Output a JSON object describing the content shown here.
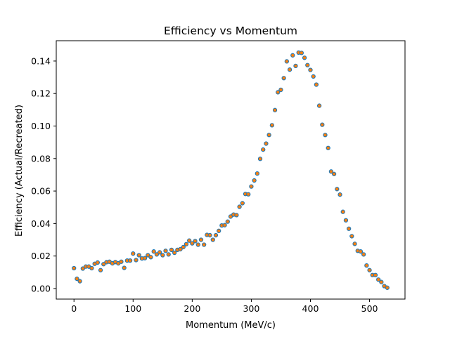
{
  "chart_data": {
    "type": "scatter",
    "title": "Efficiency vs Momentum",
    "xlabel": "Momentum (MeV/c)",
    "ylabel": "Efficiency (Actual/Recreated)",
    "xlim": [
      -30,
      560
    ],
    "ylim": [
      -0.0065,
      0.1525
    ],
    "xticks": [
      0,
      100,
      200,
      300,
      400,
      500
    ],
    "yticks": [
      0.0,
      0.02,
      0.04,
      0.06,
      0.08,
      0.1,
      0.12,
      0.14
    ],
    "ytick_labels": [
      "0.00",
      "0.02",
      "0.04",
      "0.06",
      "0.08",
      "0.10",
      "0.12",
      "0.14"
    ],
    "grid": false,
    "legend": "none",
    "marker_colors": {
      "face": "#ff7f0e",
      "edge": "#1f77b4"
    },
    "x": [
      0,
      5,
      10,
      15,
      20,
      25,
      30,
      35,
      40,
      45,
      50,
      55,
      60,
      65,
      70,
      75,
      80,
      85,
      90,
      95,
      100,
      105,
      110,
      115,
      120,
      125,
      130,
      135,
      140,
      145,
      150,
      155,
      160,
      165,
      170,
      175,
      180,
      185,
      190,
      195,
      200,
      205,
      210,
      215,
      220,
      225,
      230,
      235,
      240,
      245,
      250,
      255,
      260,
      265,
      270,
      275,
      280,
      285,
      290,
      295,
      300,
      305,
      310,
      315,
      320,
      325,
      330,
      335,
      340,
      345,
      350,
      355,
      360,
      365,
      370,
      375,
      380,
      385,
      390,
      395,
      400,
      405,
      410,
      415,
      420,
      425,
      430,
      435,
      440,
      445,
      450,
      455,
      460,
      465,
      470,
      475,
      480,
      485,
      490,
      495,
      500,
      505,
      510,
      515,
      520,
      525,
      530
    ],
    "y": [
      0.0125,
      0.006,
      0.0045,
      0.0123,
      0.0135,
      0.0135,
      0.0125,
      0.0152,
      0.016,
      0.0113,
      0.015,
      0.0162,
      0.0165,
      0.0155,
      0.0163,
      0.0155,
      0.0165,
      0.0127,
      0.0172,
      0.0172,
      0.0215,
      0.0175,
      0.0205,
      0.0185,
      0.0187,
      0.0205,
      0.0193,
      0.0228,
      0.021,
      0.0223,
      0.0205,
      0.0232,
      0.021,
      0.0238,
      0.022,
      0.0238,
      0.0242,
      0.0255,
      0.0273,
      0.0295,
      0.0278,
      0.0292,
      0.027,
      0.03,
      0.027,
      0.033,
      0.0328,
      0.03,
      0.0328,
      0.0355,
      0.0388,
      0.039,
      0.0412,
      0.0443,
      0.0455,
      0.0452,
      0.0503,
      0.0525,
      0.0582,
      0.058,
      0.0628,
      0.0665,
      0.0708,
      0.0798,
      0.0855,
      0.0892,
      0.0945,
      0.1005,
      0.1098,
      0.1208,
      0.1223,
      0.1295,
      0.1398,
      0.1347,
      0.1435,
      0.137,
      0.1452,
      0.145,
      0.142,
      0.1375,
      0.1345,
      0.1305,
      0.1255,
      0.1125,
      0.1008,
      0.0945,
      0.0865,
      0.072,
      0.0705,
      0.0612,
      0.0578,
      0.0472,
      0.042,
      0.0368,
      0.0322,
      0.0275,
      0.0232,
      0.0228,
      0.021,
      0.0142,
      0.0113,
      0.0083,
      0.0083,
      0.0055,
      0.004,
      0.0015,
      0.0005
    ]
  }
}
